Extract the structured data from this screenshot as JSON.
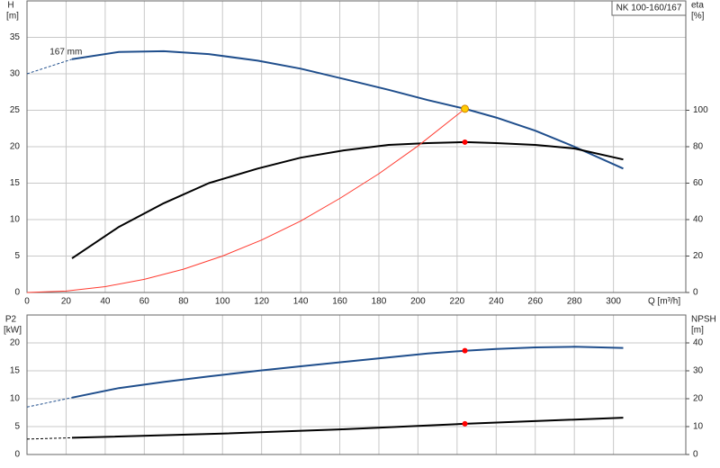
{
  "chart_data": [
    {
      "type": "line",
      "title": "NK 100-160/167",
      "x_label": "Q [m³/h]",
      "y_label": "H",
      "y_unit": "[m]",
      "y2_label": "eta",
      "y2_unit": "[%]",
      "annotation": {
        "text": "167 mm",
        "x": 7,
        "y": 32.5
      },
      "xlim": [
        0,
        337
      ],
      "xticks": [
        0,
        20,
        40,
        60,
        80,
        100,
        120,
        140,
        160,
        180,
        200,
        220,
        240,
        260,
        280,
        300
      ],
      "xtick_labels": true,
      "ylim": [
        0,
        40
      ],
      "yticks": [
        0,
        5,
        10,
        15,
        20,
        25,
        30,
        35
      ],
      "y2lim": [
        0,
        160
      ],
      "y2ticks": [
        0,
        20,
        40,
        60,
        80,
        100
      ],
      "grid": true,
      "series": [
        {
          "color": "#1f4e8c",
          "width": 2,
          "x": [
            23,
            47,
            70,
            93,
            118,
            140,
            162,
            185,
            205,
            224,
            240,
            260,
            280,
            305
          ],
          "values": [
            32,
            33,
            33.1,
            32.7,
            31.8,
            30.7,
            29.3,
            27.8,
            26.4,
            25.2,
            24,
            22.2,
            20,
            17
          ]
        },
        {
          "color": "#1f4e8c",
          "width": 1,
          "dashed": true,
          "x": [
            0,
            23
          ],
          "values": [
            30,
            32
          ]
        },
        {
          "color": "#000000",
          "width": 2,
          "axis": "y2",
          "x": [
            23,
            47,
            70,
            93,
            118,
            140,
            162,
            185,
            205,
            224,
            240,
            260,
            280,
            305
          ],
          "values": [
            18.7,
            36,
            49,
            60,
            68,
            74,
            78,
            81,
            82,
            82.5,
            82,
            81,
            79,
            73
          ]
        },
        {
          "color": "#ff3b30",
          "width": 1,
          "x": [
            0,
            20,
            40,
            60,
            80,
            100,
            120,
            140,
            160,
            180,
            200,
            224
          ],
          "values": [
            0,
            0.2,
            0.8,
            1.8,
            3.2,
            5,
            7.2,
            9.8,
            12.9,
            16.3,
            20.1,
            25.2
          ]
        },
        {
          "color": "#ffcc00",
          "marker": true,
          "x": [
            224
          ],
          "values": [
            25.2
          ]
        },
        {
          "color": "#ff0000",
          "marker": true,
          "axis": "y2",
          "x": [
            224
          ],
          "values": [
            82.5
          ]
        }
      ]
    },
    {
      "type": "line",
      "y_label": "P2",
      "y_unit": "[kW]",
      "y2_label": "NPSH",
      "y2_unit": "[m]",
      "xlim": [
        0,
        337
      ],
      "xticks": [
        0,
        20,
        40,
        60,
        80,
        100,
        120,
        140,
        160,
        180,
        200,
        220,
        240,
        260,
        280,
        300
      ],
      "xtick_labels": false,
      "ylim": [
        0,
        25
      ],
      "yticks": [
        0,
        5,
        10,
        15,
        20
      ],
      "y2lim": [
        0,
        50
      ],
      "y2ticks": [
        0,
        10,
        20,
        30,
        40
      ],
      "grid": true,
      "series": [
        {
          "color": "#1f4e8c",
          "width": 2,
          "x": [
            23,
            47,
            70,
            93,
            118,
            140,
            162,
            185,
            205,
            224,
            240,
            260,
            280,
            305
          ],
          "values": [
            10.2,
            11.9,
            13,
            14,
            15,
            15.8,
            16.6,
            17.4,
            18.1,
            18.6,
            18.9,
            19.2,
            19.3,
            19.1
          ]
        },
        {
          "color": "#1f4e8c",
          "width": 1,
          "dashed": true,
          "x": [
            0,
            23
          ],
          "values": [
            8.5,
            10.2
          ]
        },
        {
          "color": "#000000",
          "width": 2,
          "axis": "y2",
          "x": [
            23,
            100,
            160,
            224,
            305
          ],
          "values": [
            6,
            7.5,
            9,
            11,
            13.2
          ]
        },
        {
          "color": "#000000",
          "width": 1,
          "dashed": true,
          "axis": "y2",
          "x": [
            0,
            23
          ],
          "values": [
            5.5,
            6
          ]
        },
        {
          "color": "#ff0000",
          "marker": true,
          "x": [
            224
          ],
          "values": [
            18.6
          ]
        },
        {
          "color": "#ff0000",
          "marker": true,
          "axis": "y2",
          "x": [
            224
          ],
          "values": [
            11
          ]
        }
      ]
    }
  ]
}
